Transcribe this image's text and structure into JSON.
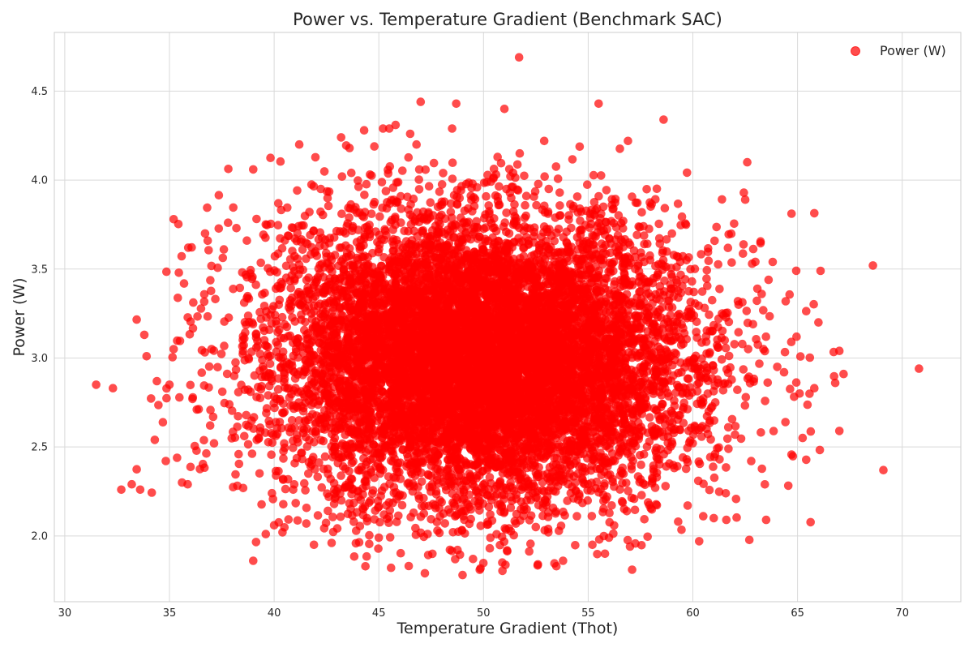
{
  "chart_data": {
    "type": "scatter",
    "title": "Power vs. Temperature Gradient (Benchmark SAC)",
    "xlabel": "Temperature Gradient (Thot)",
    "ylabel": "Power (W)",
    "xlim": [
      29.5,
      72.8
    ],
    "ylim": [
      1.63,
      4.83
    ],
    "xticks": [
      30,
      35,
      40,
      45,
      50,
      55,
      60,
      65,
      70
    ],
    "xtick_labels": [
      "30",
      "35",
      "40",
      "45",
      "50",
      "55",
      "60",
      "65",
      "70"
    ],
    "yticks": [
      2.0,
      2.5,
      3.0,
      3.5,
      4.0,
      4.5
    ],
    "ytick_labels": [
      "2.0",
      "2.5",
      "3.0",
      "3.5",
      "4.0",
      "4.5"
    ],
    "grid": true,
    "legend_position": "top-right",
    "series": [
      {
        "name": "Power (W)",
        "color": "#ff0000",
        "marker": "circle",
        "x_mean": 50.0,
        "x_std": 5.0,
        "y_mean": 3.0,
        "y_std": 0.4,
        "point_count": 10000,
        "points": [
          [
            31.5,
            2.85
          ],
          [
            32.3,
            2.83
          ],
          [
            32.7,
            2.26
          ],
          [
            33.2,
            2.29
          ],
          [
            33.6,
            2.26
          ],
          [
            33.8,
            3.13
          ],
          [
            34.3,
            2.54
          ],
          [
            34.4,
            2.87
          ],
          [
            35.0,
            2.85
          ],
          [
            35.2,
            3.05
          ],
          [
            35.2,
            3.78
          ],
          [
            35.6,
            2.3
          ],
          [
            35.9,
            3.62
          ],
          [
            36.1,
            2.77
          ],
          [
            36.7,
            3.7
          ],
          [
            37.6,
            3.61
          ],
          [
            37.8,
            3.76
          ],
          [
            38.2,
            3.73
          ],
          [
            38.7,
            3.66
          ],
          [
            39.0,
            4.06
          ],
          [
            39.0,
            1.86
          ],
          [
            39.6,
            2.01
          ],
          [
            40.0,
            2.06
          ],
          [
            40.4,
            2.02
          ],
          [
            41.2,
            4.2
          ],
          [
            41.9,
            1.95
          ],
          [
            43.2,
            4.24
          ],
          [
            43.6,
            4.18
          ],
          [
            44.3,
            4.28
          ],
          [
            45.0,
            1.99
          ],
          [
            45.2,
            4.29
          ],
          [
            45.5,
            4.29
          ],
          [
            45.8,
            4.31
          ],
          [
            46.5,
            4.26
          ],
          [
            46.8,
            4.2
          ],
          [
            47.0,
            4.44
          ],
          [
            47.2,
            1.79
          ],
          [
            47.8,
            2.03
          ],
          [
            48.5,
            4.29
          ],
          [
            48.7,
            4.43
          ],
          [
            49.0,
            1.78
          ],
          [
            49.5,
            1.87
          ],
          [
            50.3,
            1.93
          ],
          [
            50.9,
            1.85
          ],
          [
            51.0,
            4.4
          ],
          [
            51.7,
            4.69
          ],
          [
            52.6,
            1.84
          ],
          [
            52.9,
            4.22
          ],
          [
            53.8,
            1.86
          ],
          [
            55.2,
            1.95
          ],
          [
            55.5,
            4.43
          ],
          [
            55.8,
            1.9
          ],
          [
            56.9,
            4.22
          ],
          [
            57.0,
            1.94
          ],
          [
            57.1,
            1.81
          ],
          [
            58.6,
            4.34
          ],
          [
            59.3,
            2.08
          ],
          [
            60.3,
            1.97
          ],
          [
            61.0,
            2.1
          ],
          [
            61.6,
            2.09
          ],
          [
            62.6,
            4.1
          ],
          [
            62.5,
            3.89
          ],
          [
            63.5,
            2.09
          ],
          [
            64.7,
            3.09
          ],
          [
            65.1,
            2.8
          ],
          [
            65.8,
            2.83
          ],
          [
            66.0,
            3.2
          ],
          [
            66.1,
            3.49
          ],
          [
            66.8,
            2.86
          ],
          [
            67.0,
            3.04
          ],
          [
            67.0,
            2.59
          ],
          [
            67.2,
            2.91
          ],
          [
            68.6,
            3.52
          ],
          [
            69.1,
            2.37
          ],
          [
            70.8,
            2.94
          ]
        ]
      }
    ]
  }
}
